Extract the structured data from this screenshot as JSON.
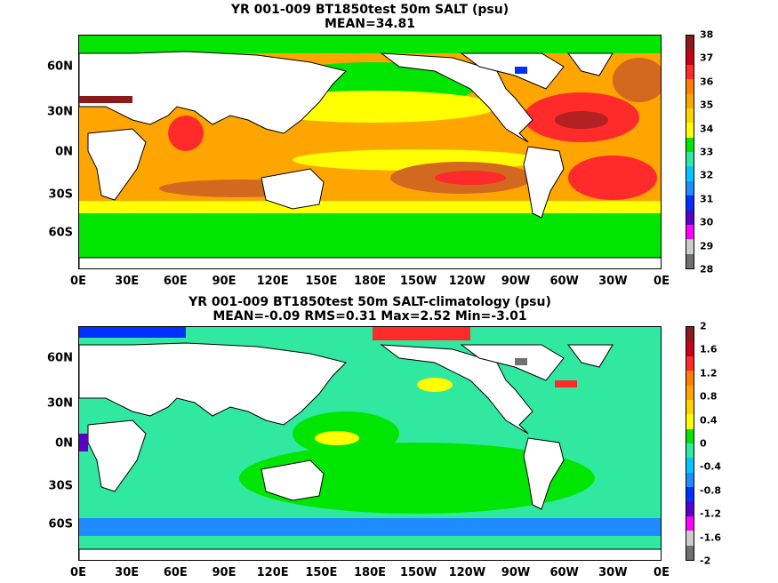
{
  "panels": [
    {
      "title_line1": "YR 001-009 BT1850test 50m SALT (psu)",
      "title_line2": "MEAN=34.81",
      "colorbar": {
        "labels": [
          "38",
          "37",
          "36",
          "35",
          "34",
          "33",
          "32",
          "31",
          "30",
          "29",
          "28"
        ],
        "colors": [
          "#8b1a1a",
          "#c8001e",
          "#ff2a2a",
          "#ff7f00",
          "#ffa500",
          "#ffd200",
          "#ffff00",
          "#00e600",
          "#30e8a0",
          "#00c8ff",
          "#1e8cff",
          "#0030ff",
          "#5a00c8",
          "#ff00ff",
          "#cccccc",
          "#707070"
        ]
      }
    },
    {
      "title_line1": "YR 001-009 BT1850test 50m SALT-climatology (psu)",
      "title_line2": "MEAN=-0.09   RMS=0.31   Max=2.52   Min=-3.01",
      "colorbar": {
        "labels": [
          "2",
          "1.6",
          "1.2",
          "0.8",
          "0.4",
          "0",
          "-0.4",
          "-0.8",
          "-1.2",
          "-1.6",
          "-2"
        ],
        "colors": [
          "#8b1a1a",
          "#c8001e",
          "#ff2a2a",
          "#ff7f00",
          "#ffa500",
          "#ffd200",
          "#ffff00",
          "#00e600",
          "#30e8a0",
          "#00c8ff",
          "#1e8cff",
          "#0030ff",
          "#5a00c8",
          "#ff00ff",
          "#cccccc",
          "#707070"
        ]
      }
    }
  ],
  "x_ticks": [
    "0E",
    "30E",
    "60E",
    "90E",
    "120E",
    "150E",
    "180E",
    "150W",
    "120W",
    "90W",
    "60W",
    "30W",
    "0E"
  ],
  "y_ticks": [
    "60N",
    "30N",
    "0N",
    "30S",
    "60S"
  ],
  "map_colors": {
    "land": "#ffffff",
    "coast": "#000000",
    "top_ocean_base": "#ffa500",
    "bottom_ocean_base": "#30e8a0"
  }
}
